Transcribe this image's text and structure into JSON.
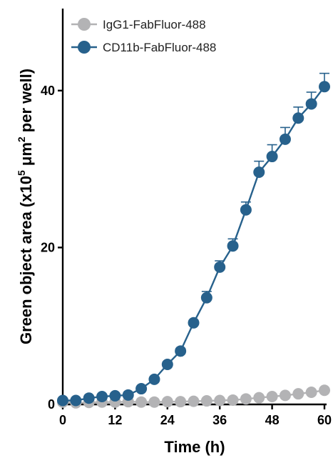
{
  "chart_data": {
    "type": "line",
    "xlabel": "Time (h)",
    "ylabel": {
      "pre": "Green object area (x10",
      "sup1": "5",
      "mid": " μm",
      "sup2": "2",
      "post": " per well)"
    },
    "xlim": [
      0,
      60
    ],
    "ylim": [
      0,
      50
    ],
    "x_ticks": [
      0,
      12,
      24,
      36,
      48,
      60
    ],
    "y_ticks": [
      0,
      20,
      40
    ],
    "grid": false,
    "legend_position": "top-left",
    "series": [
      {
        "name": "IgG1-FabFluor-488",
        "color": "#b3b3b5",
        "x": [
          0,
          3,
          6,
          9,
          12,
          15,
          18,
          21,
          24,
          27,
          30,
          33,
          36,
          39,
          42,
          45,
          48,
          51,
          54,
          57,
          60
        ],
        "y": [
          0.3,
          0.2,
          0.25,
          0.3,
          0.3,
          0.35,
          0.3,
          0.3,
          0.35,
          0.35,
          0.4,
          0.45,
          0.5,
          0.55,
          0.7,
          0.85,
          1.0,
          1.15,
          1.35,
          1.55,
          1.8
        ],
        "err": [
          0,
          0,
          0,
          0,
          0,
          0,
          0,
          0,
          0,
          0,
          0,
          0,
          0,
          0,
          0,
          0,
          0,
          0,
          0,
          0,
          0
        ]
      },
      {
        "name": "CD11b-FabFluor-488",
        "color": "#27618c",
        "x": [
          0,
          3,
          6,
          9,
          12,
          15,
          18,
          21,
          24,
          27,
          30,
          33,
          36,
          39,
          42,
          45,
          48,
          51,
          54,
          57,
          60
        ],
        "y": [
          0.5,
          0.5,
          0.8,
          1.0,
          1.1,
          1.2,
          2.0,
          3.2,
          5.1,
          6.8,
          10.4,
          13.6,
          17.5,
          20.2,
          24.8,
          29.6,
          31.6,
          33.8,
          36.5,
          38.3,
          40.5
        ],
        "err": [
          0,
          0,
          0,
          0,
          0,
          0,
          0,
          0,
          0.3,
          0.3,
          0.3,
          0.8,
          0.8,
          0.9,
          1.0,
          1.4,
          1.5,
          1.5,
          1.4,
          1.5,
          1.7
        ]
      }
    ]
  }
}
